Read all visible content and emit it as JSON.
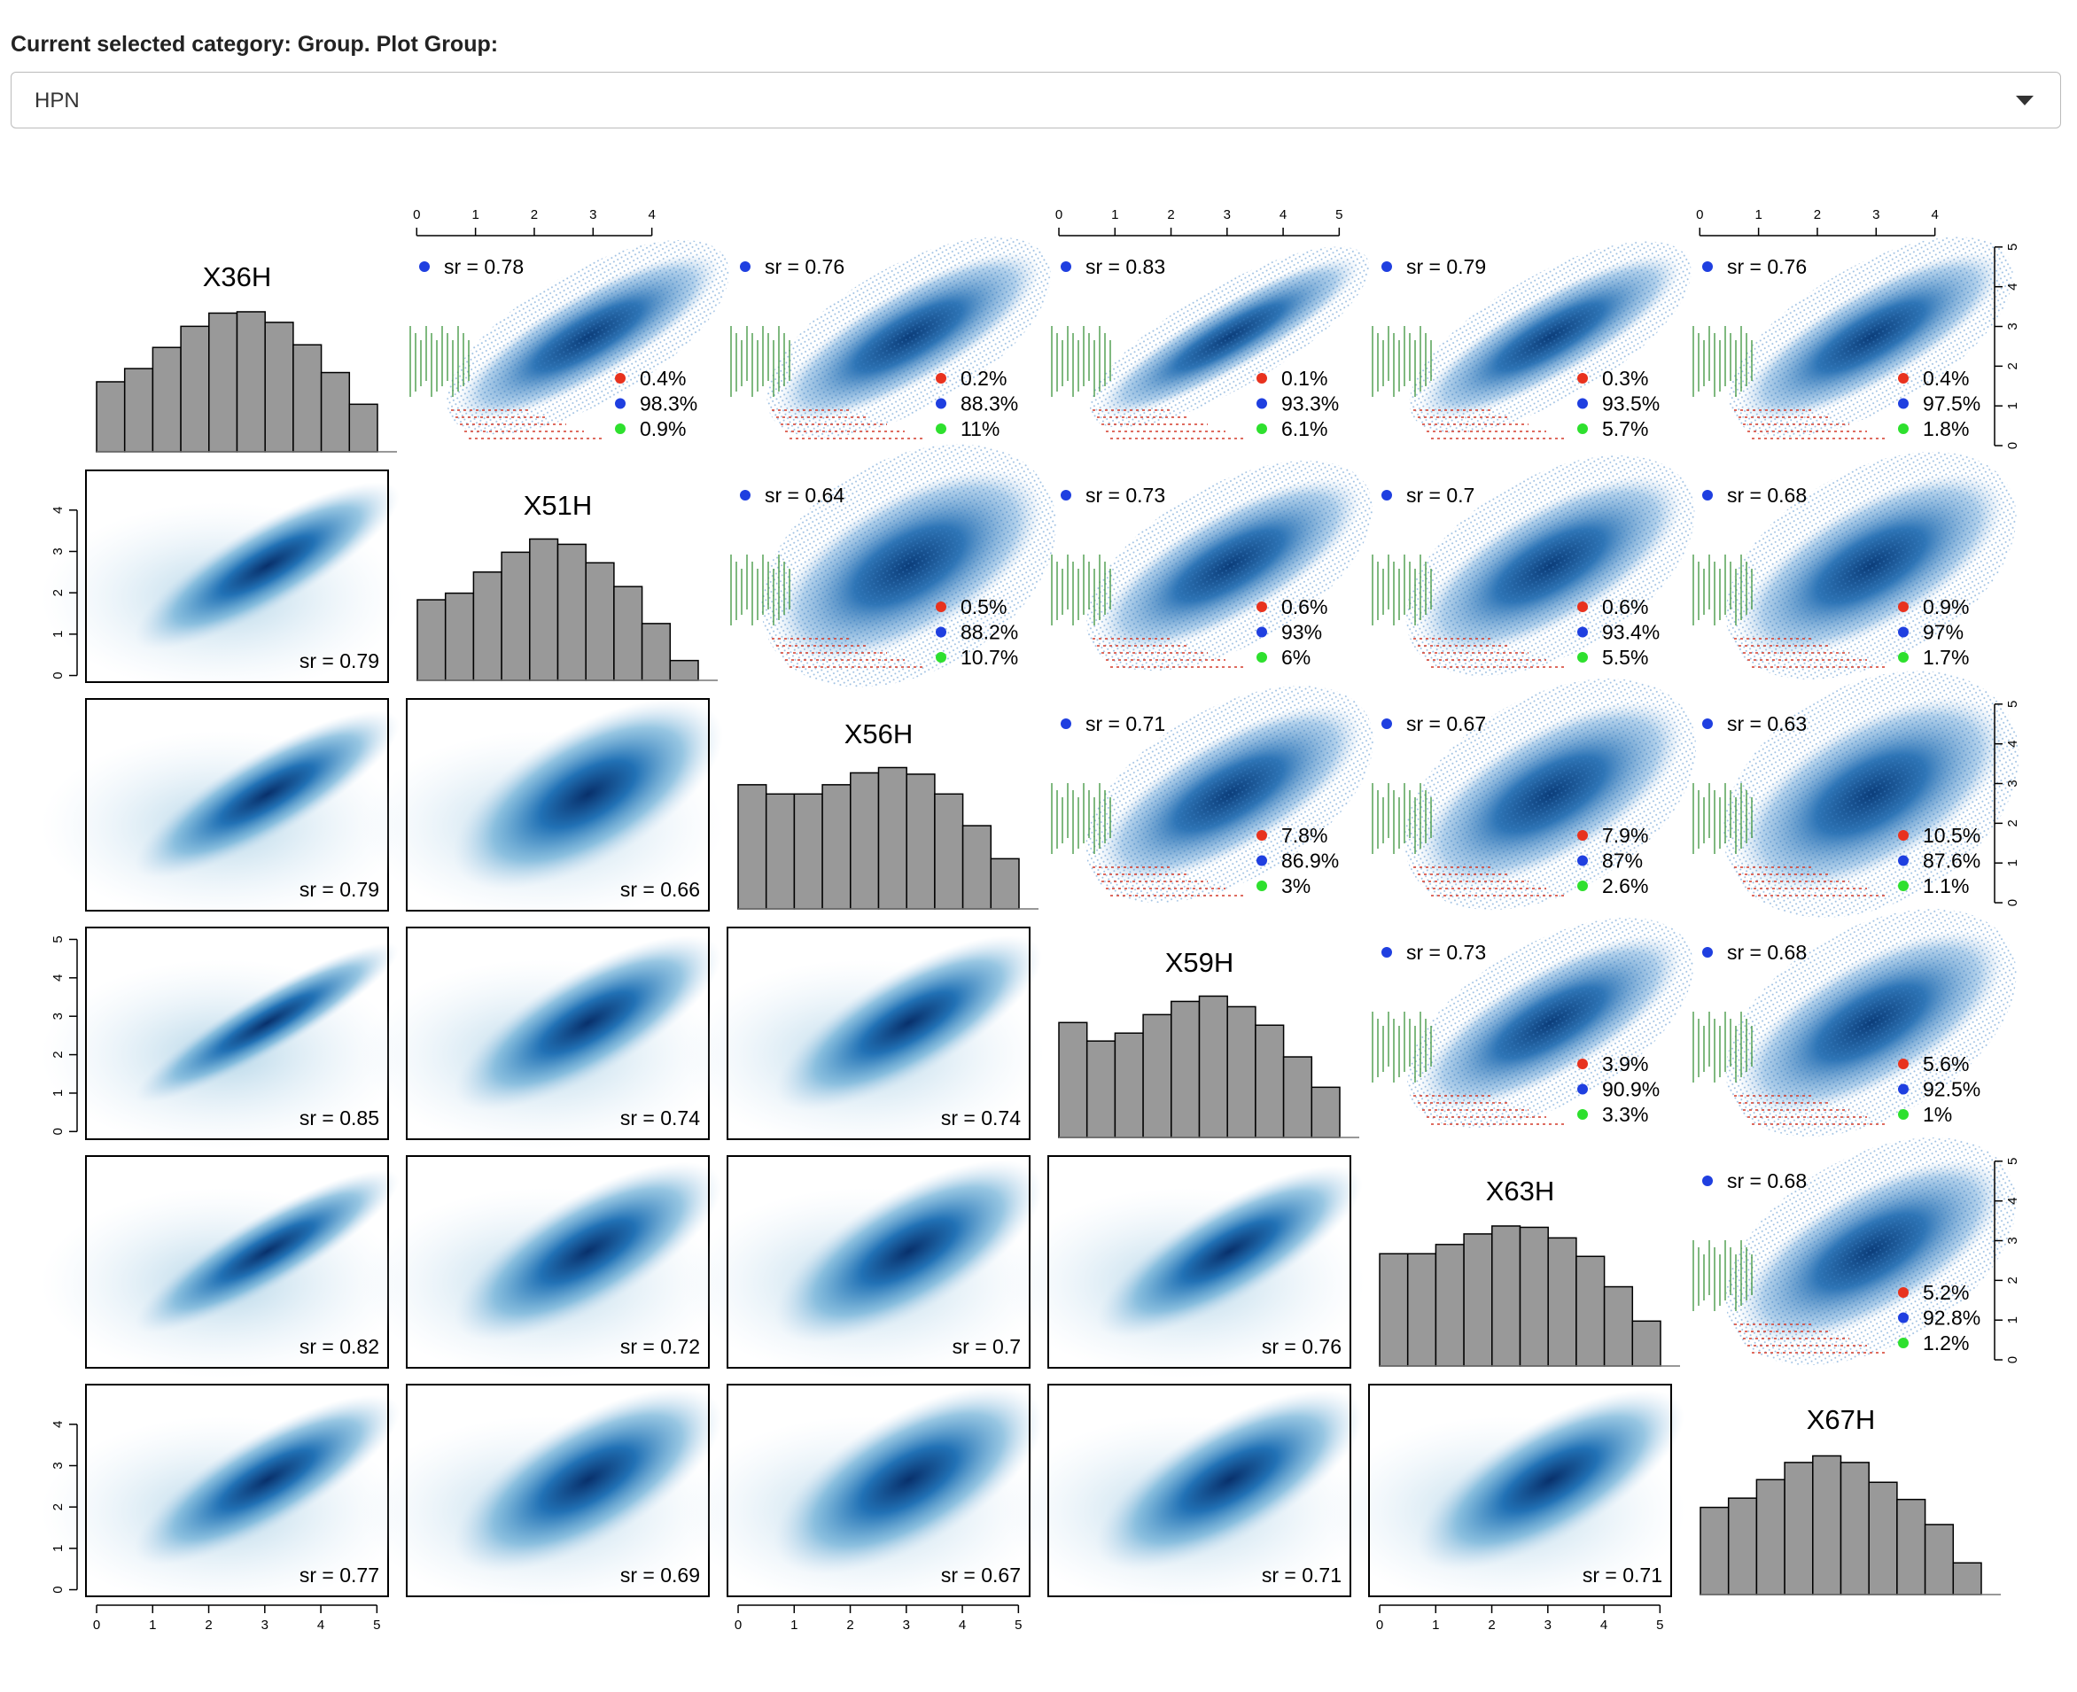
{
  "header": {
    "label": "Current selected category: Group. Plot Group:",
    "select_value": "HPN"
  },
  "chart_data": {
    "type": "pairs",
    "variables": [
      "X36H",
      "X51H",
      "X56H",
      "X59H",
      "X63H",
      "X67H"
    ],
    "hist_ylim": [
      0,
      110
    ],
    "hist_color": "#999999",
    "histograms": [
      [
        53,
        63,
        79,
        95,
        105,
        106,
        98,
        81,
        60,
        36
      ],
      [
        61,
        66,
        82,
        97,
        107,
        103,
        89,
        71,
        43,
        15
      ],
      [
        94,
        87,
        87,
        94,
        103,
        107,
        102,
        87,
        63,
        38
      ],
      [
        87,
        73,
        79,
        93,
        103,
        107,
        99,
        85,
        61,
        38
      ],
      [
        85,
        85,
        92,
        100,
        106,
        105,
        97,
        83,
        60,
        34
      ],
      [
        66,
        73,
        87,
        100,
        105,
        100,
        85,
        72,
        53,
        24
      ]
    ],
    "legend_colors": [
      "#e8321e",
      "#1f3fe0",
      "#2ee02e"
    ],
    "sr_color": "#1f3fe0",
    "upper": [
      {
        "row": 0,
        "col": 1,
        "sr": {
          "value": 0.78,
          "label": "sr = 0.78"
        },
        "values": [
          0.4,
          98.3,
          0.9
        ],
        "value_labels": [
          "0.4%",
          "98.3%",
          "0.9%"
        ]
      },
      {
        "row": 0,
        "col": 2,
        "sr": {
          "value": 0.76,
          "label": "sr = 0.76"
        },
        "values": [
          0.2,
          88.3,
          11
        ],
        "value_labels": [
          "0.2%",
          "88.3%",
          "11%"
        ]
      },
      {
        "row": 0,
        "col": 3,
        "sr": {
          "value": 0.83,
          "label": "sr = 0.83"
        },
        "values": [
          0.1,
          93.3,
          6.1
        ],
        "value_labels": [
          "0.1%",
          "93.3%",
          "6.1%"
        ]
      },
      {
        "row": 0,
        "col": 4,
        "sr": {
          "value": 0.79,
          "label": "sr = 0.79"
        },
        "values": [
          0.3,
          93.5,
          5.7
        ],
        "value_labels": [
          "0.3%",
          "93.5%",
          "5.7%"
        ]
      },
      {
        "row": 0,
        "col": 5,
        "sr": {
          "value": 0.76,
          "label": "sr = 0.76"
        },
        "values": [
          0.4,
          97.5,
          1.8
        ],
        "value_labels": [
          "0.4%",
          "97.5%",
          "1.8%"
        ]
      },
      {
        "row": 1,
        "col": 2,
        "sr": {
          "value": 0.64,
          "label": "sr = 0.64"
        },
        "values": [
          0.5,
          88.2,
          10.7
        ],
        "value_labels": [
          "0.5%",
          "88.2%",
          "10.7%"
        ]
      },
      {
        "row": 1,
        "col": 3,
        "sr": {
          "value": 0.73,
          "label": "sr = 0.73"
        },
        "values": [
          0.6,
          93,
          6
        ],
        "value_labels": [
          "0.6%",
          "93%",
          "6%"
        ]
      },
      {
        "row": 1,
        "col": 4,
        "sr": {
          "value": 0.7,
          "label": "sr = 0.7"
        },
        "values": [
          0.6,
          93.4,
          5.5
        ],
        "value_labels": [
          "0.6%",
          "93.4%",
          "5.5%"
        ]
      },
      {
        "row": 1,
        "col": 5,
        "sr": {
          "value": 0.68,
          "label": "sr = 0.68"
        },
        "values": [
          0.9,
          97,
          1.7
        ],
        "value_labels": [
          "0.9%",
          "97%",
          "1.7%"
        ]
      },
      {
        "row": 2,
        "col": 3,
        "sr": {
          "value": 0.71,
          "label": "sr = 0.71"
        },
        "values": [
          7.8,
          86.9,
          3
        ],
        "value_labels": [
          "7.8%",
          "86.9%",
          "3%"
        ]
      },
      {
        "row": 2,
        "col": 4,
        "sr": {
          "value": 0.67,
          "label": "sr = 0.67"
        },
        "values": [
          7.9,
          87,
          2.6
        ],
        "value_labels": [
          "7.9%",
          "87%",
          "2.6%"
        ]
      },
      {
        "row": 2,
        "col": 5,
        "sr": {
          "value": 0.63,
          "label": "sr = 0.63"
        },
        "values": [
          10.5,
          87.6,
          1.1
        ],
        "value_labels": [
          "10.5%",
          "87.6%",
          "1.1%"
        ]
      },
      {
        "row": 3,
        "col": 4,
        "sr": {
          "value": 0.73,
          "label": "sr = 0.73"
        },
        "values": [
          3.9,
          90.9,
          3.3
        ],
        "value_labels": [
          "3.9%",
          "90.9%",
          "3.3%"
        ]
      },
      {
        "row": 3,
        "col": 5,
        "sr": {
          "value": 0.68,
          "label": "sr = 0.68"
        },
        "values": [
          5.6,
          92.5,
          1
        ],
        "value_labels": [
          "5.6%",
          "92.5%",
          "1%"
        ]
      },
      {
        "row": 4,
        "col": 5,
        "sr": {
          "value": 0.68,
          "label": "sr = 0.68"
        },
        "values": [
          5.2,
          92.8,
          1.2
        ],
        "value_labels": [
          "5.2%",
          "92.8%",
          "1.2%"
        ]
      }
    ],
    "lower": [
      {
        "row": 1,
        "col": 0,
        "sr": {
          "value": 0.79,
          "label": "sr = 0.79"
        }
      },
      {
        "row": 2,
        "col": 0,
        "sr": {
          "value": 0.79,
          "label": "sr = 0.79"
        }
      },
      {
        "row": 2,
        "col": 1,
        "sr": {
          "value": 0.66,
          "label": "sr = 0.66"
        }
      },
      {
        "row": 3,
        "col": 0,
        "sr": {
          "value": 0.85,
          "label": "sr = 0.85"
        }
      },
      {
        "row": 3,
        "col": 1,
        "sr": {
          "value": 0.74,
          "label": "sr = 0.74"
        }
      },
      {
        "row": 3,
        "col": 2,
        "sr": {
          "value": 0.74,
          "label": "sr = 0.74"
        }
      },
      {
        "row": 4,
        "col": 0,
        "sr": {
          "value": 0.82,
          "label": "sr = 0.82"
        }
      },
      {
        "row": 4,
        "col": 1,
        "sr": {
          "value": 0.72,
          "label": "sr = 0.72"
        }
      },
      {
        "row": 4,
        "col": 2,
        "sr": {
          "value": 0.7,
          "label": "sr = 0.7"
        }
      },
      {
        "row": 4,
        "col": 3,
        "sr": {
          "value": 0.76,
          "label": "sr = 0.76"
        }
      },
      {
        "row": 5,
        "col": 0,
        "sr": {
          "value": 0.77,
          "label": "sr = 0.77"
        }
      },
      {
        "row": 5,
        "col": 1,
        "sr": {
          "value": 0.69,
          "label": "sr = 0.69"
        }
      },
      {
        "row": 5,
        "col": 2,
        "sr": {
          "value": 0.67,
          "label": "sr = 0.67"
        }
      },
      {
        "row": 5,
        "col": 3,
        "sr": {
          "value": 0.71,
          "label": "sr = 0.71"
        }
      },
      {
        "row": 5,
        "col": 4,
        "sr": {
          "value": 0.71,
          "label": "sr = 0.71"
        }
      }
    ],
    "axes": [
      {
        "side": "top",
        "col": 1,
        "lim": [
          -0.17,
          4.97
        ],
        "ticks": [
          0,
          1,
          2,
          3,
          4
        ]
      },
      {
        "side": "top",
        "col": 3,
        "lim": [
          -0.19,
          5.2
        ],
        "ticks": [
          0,
          1,
          2,
          3,
          4,
          5
        ]
      },
      {
        "side": "top",
        "col": 5,
        "lim": [
          -0.17,
          4.97
        ],
        "ticks": [
          0,
          1,
          2,
          3,
          4
        ]
      },
      {
        "side": "right",
        "row": 0,
        "lim": [
          -0.2,
          5.13
        ],
        "ticks": [
          0,
          1,
          2,
          3,
          4,
          5
        ]
      },
      {
        "side": "right",
        "row": 2,
        "lim": [
          -0.2,
          5.13
        ],
        "ticks": [
          0,
          1,
          2,
          3,
          4,
          5
        ]
      },
      {
        "side": "right",
        "row": 4,
        "lim": [
          -0.2,
          5.13
        ],
        "ticks": [
          0,
          1,
          2,
          3,
          4,
          5
        ]
      },
      {
        "side": "left",
        "row": 1,
        "lim": [
          -0.16,
          4.96
        ],
        "ticks": [
          0,
          1,
          2,
          3,
          4
        ]
      },
      {
        "side": "left",
        "row": 3,
        "lim": [
          -0.2,
          5.31
        ],
        "ticks": [
          0,
          1,
          2,
          3,
          4,
          5
        ]
      },
      {
        "side": "left",
        "row": 5,
        "lim": [
          -0.16,
          4.96
        ],
        "ticks": [
          0,
          1,
          2,
          3,
          4
        ]
      },
      {
        "side": "bottom",
        "col": 0,
        "lim": [
          -0.19,
          5.2
        ],
        "ticks": [
          0,
          1,
          2,
          3,
          4,
          5
        ]
      },
      {
        "side": "bottom",
        "col": 2,
        "lim": [
          -0.19,
          5.2
        ],
        "ticks": [
          0,
          1,
          2,
          3,
          4,
          5
        ]
      },
      {
        "side": "bottom",
        "col": 4,
        "lim": [
          -0.19,
          5.2
        ],
        "ticks": [
          0,
          1,
          2,
          3,
          4,
          5
        ]
      }
    ]
  }
}
